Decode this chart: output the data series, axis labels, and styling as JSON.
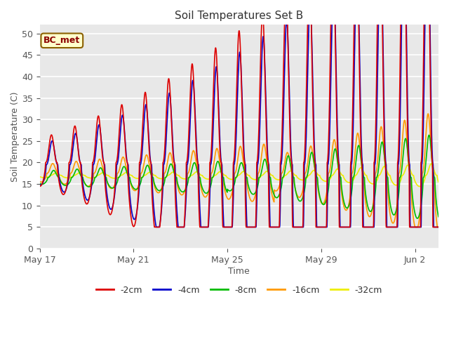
{
  "title": "Soil Temperatures Set B",
  "xlabel": "Time",
  "ylabel": "Soil Temperature (C)",
  "ylim": [
    0,
    52
  ],
  "yticks": [
    0,
    5,
    10,
    15,
    20,
    25,
    30,
    35,
    40,
    45,
    50
  ],
  "annotation": "BC_met",
  "line_colors": {
    "-2cm": "#dd0000",
    "-4cm": "#0000cc",
    "-8cm": "#00bb00",
    "-16cm": "#ff9900",
    "-32cm": "#eeee00"
  },
  "line_widths": {
    "-2cm": 1.2,
    "-4cm": 1.2,
    "-8cm": 1.2,
    "-16cm": 1.2,
    "-32cm": 1.2
  },
  "legend_labels": [
    "-2cm",
    "-4cm",
    "-8cm",
    "-16cm",
    "-32cm"
  ],
  "plot_bg_color": "#e8e8e8",
  "x_tick_labels": [
    "May 17",
    "May 21",
    "May 25",
    "May 29",
    "Jun 2"
  ],
  "x_tick_positions": [
    0,
    4,
    8,
    12,
    16
  ]
}
